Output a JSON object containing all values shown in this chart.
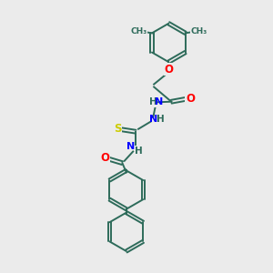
{
  "background_color": "#ebebeb",
  "bond_color": "#2d6b5a",
  "atom_colors": {
    "O": "#ff0000",
    "N": "#0000ff",
    "S": "#cccc00",
    "H": "#808080",
    "C": "#2d6b5a"
  },
  "line_width": 1.4,
  "fig_size": [
    3.0,
    3.0
  ],
  "dpi": 100
}
